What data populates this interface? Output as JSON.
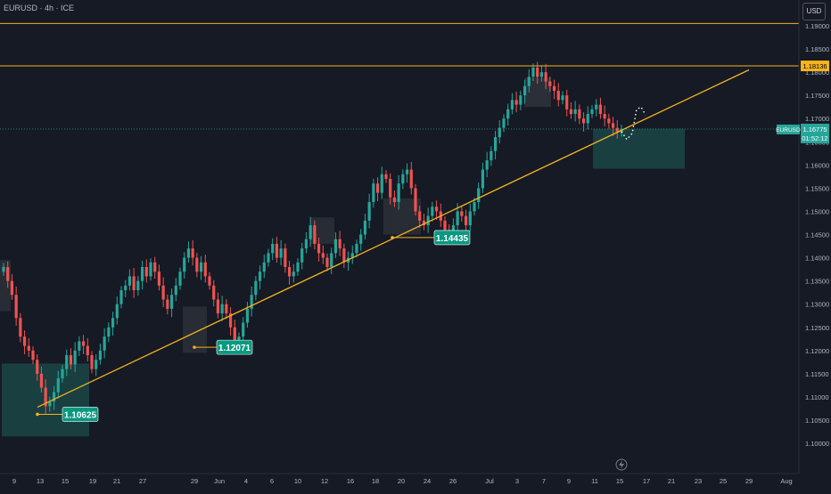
{
  "header": {
    "symbol_label": "EURUSD · 4h · ICE",
    "currency_button": "USD"
  },
  "colors": {
    "background": "#161a25",
    "up": "#26a69a",
    "down": "#ef5350",
    "trendline": "#f5b31f",
    "resistance": "#f5b31f",
    "zone_green": "#1e5f5a",
    "zone_gray": "#3a3d46",
    "axis_text": "#b2b5be"
  },
  "chart_data": {
    "type": "candlestick",
    "symbol": "EURUSD",
    "timeframe": "4h",
    "exchange": "ICE",
    "y_axis": {
      "min": 1.1,
      "max": 1.195,
      "ticks": [
        "1.19000",
        "1.18500",
        "1.18000",
        "1.17500",
        "1.17000",
        "1.16500",
        "1.16000",
        "1.15500",
        "1.15000",
        "1.14500",
        "1.14000",
        "1.13500",
        "1.13000",
        "1.12500",
        "1.12000",
        "1.11500",
        "1.11000",
        "1.10500",
        "1.10000"
      ]
    },
    "x_axis": {
      "ticks": [
        "9",
        "13",
        "15",
        "19",
        "21",
        "27",
        "29",
        "Jun",
        "4",
        "6",
        "10",
        "12",
        "16",
        "18",
        "20",
        "24",
        "26",
        "Jul",
        "3",
        "7",
        "9",
        "11",
        "15",
        "17",
        "21",
        "23",
        "25",
        "29",
        "Aug"
      ]
    },
    "horizontal_lines": [
      {
        "price": 1.1905,
        "label": ""
      },
      {
        "price": 1.18136,
        "label": "1.18136"
      }
    ],
    "current_price": {
      "label": "EURUSD",
      "value": "1.16775",
      "countdown": "01:52:12",
      "price": 1.16775
    },
    "trendline": {
      "from": {
        "date": "May 13",
        "price": 1.1078
      },
      "to": {
        "date": "Jul 29",
        "price": 1.1805
      }
    },
    "annotations": [
      {
        "text": "1.10625",
        "price": 1.10625
      },
      {
        "text": "1.12071",
        "price": 1.12071
      },
      {
        "text": "1.14435",
        "price": 1.14435
      }
    ],
    "zones": [
      {
        "kind": "demand",
        "from": "May 8",
        "to": "May 19",
        "top": 1.1172,
        "bottom": 1.1015
      },
      {
        "kind": "demand",
        "from": "Jul 15",
        "to": "Jul 19",
        "top": 1.1678,
        "bottom": 1.1592
      },
      {
        "kind": "supply",
        "from": "Jul 2",
        "to": "Jul 5",
        "top": 1.1788,
        "bottom": 1.1725
      }
    ],
    "projection_points": [
      1.1672,
      1.1655,
      1.1668,
      1.172,
      1.1725,
      1.1708
    ],
    "close_series": [
      1.138,
      1.135,
      1.132,
      1.127,
      1.123,
      1.121,
      1.12,
      1.118,
      1.115,
      1.112,
      1.108,
      1.109,
      1.111,
      1.114,
      1.116,
      1.119,
      1.117,
      1.12,
      1.122,
      1.121,
      1.119,
      1.116,
      1.118,
      1.12,
      1.123,
      1.125,
      1.127,
      1.13,
      1.133,
      1.134,
      1.136,
      1.133,
      1.135,
      1.138,
      1.136,
      1.139,
      1.137,
      1.134,
      1.131,
      1.129,
      1.132,
      1.134,
      1.137,
      1.14,
      1.142,
      1.14,
      1.137,
      1.139,
      1.136,
      1.134,
      1.131,
      1.128,
      1.13,
      1.128,
      1.125,
      1.122,
      1.123,
      1.126,
      1.129,
      1.132,
      1.135,
      1.137,
      1.139,
      1.141,
      1.143,
      1.14,
      1.142,
      1.138,
      1.136,
      1.137,
      1.139,
      1.142,
      1.144,
      1.147,
      1.143,
      1.141,
      1.14,
      1.138,
      1.141,
      1.144,
      1.142,
      1.139,
      1.14,
      1.141,
      1.143,
      1.145,
      1.148,
      1.152,
      1.156,
      1.154,
      1.158,
      1.157,
      1.153,
      1.152,
      1.156,
      1.158,
      1.159,
      1.155,
      1.15,
      1.148,
      1.147,
      1.149,
      1.151,
      1.15,
      1.148,
      1.146,
      1.145,
      1.147,
      1.15,
      1.149,
      1.147,
      1.15,
      1.152,
      1.155,
      1.159,
      1.161,
      1.163,
      1.166,
      1.168,
      1.17,
      1.172,
      1.174,
      1.173,
      1.175,
      1.177,
      1.179,
      1.181,
      1.179,
      1.18,
      1.178,
      1.177,
      1.176,
      1.174,
      1.175,
      1.172,
      1.171,
      1.172,
      1.17,
      1.169,
      1.171,
      1.172,
      1.173,
      1.171,
      1.17,
      1.169,
      1.168,
      1.167,
      1.1678
    ]
  }
}
